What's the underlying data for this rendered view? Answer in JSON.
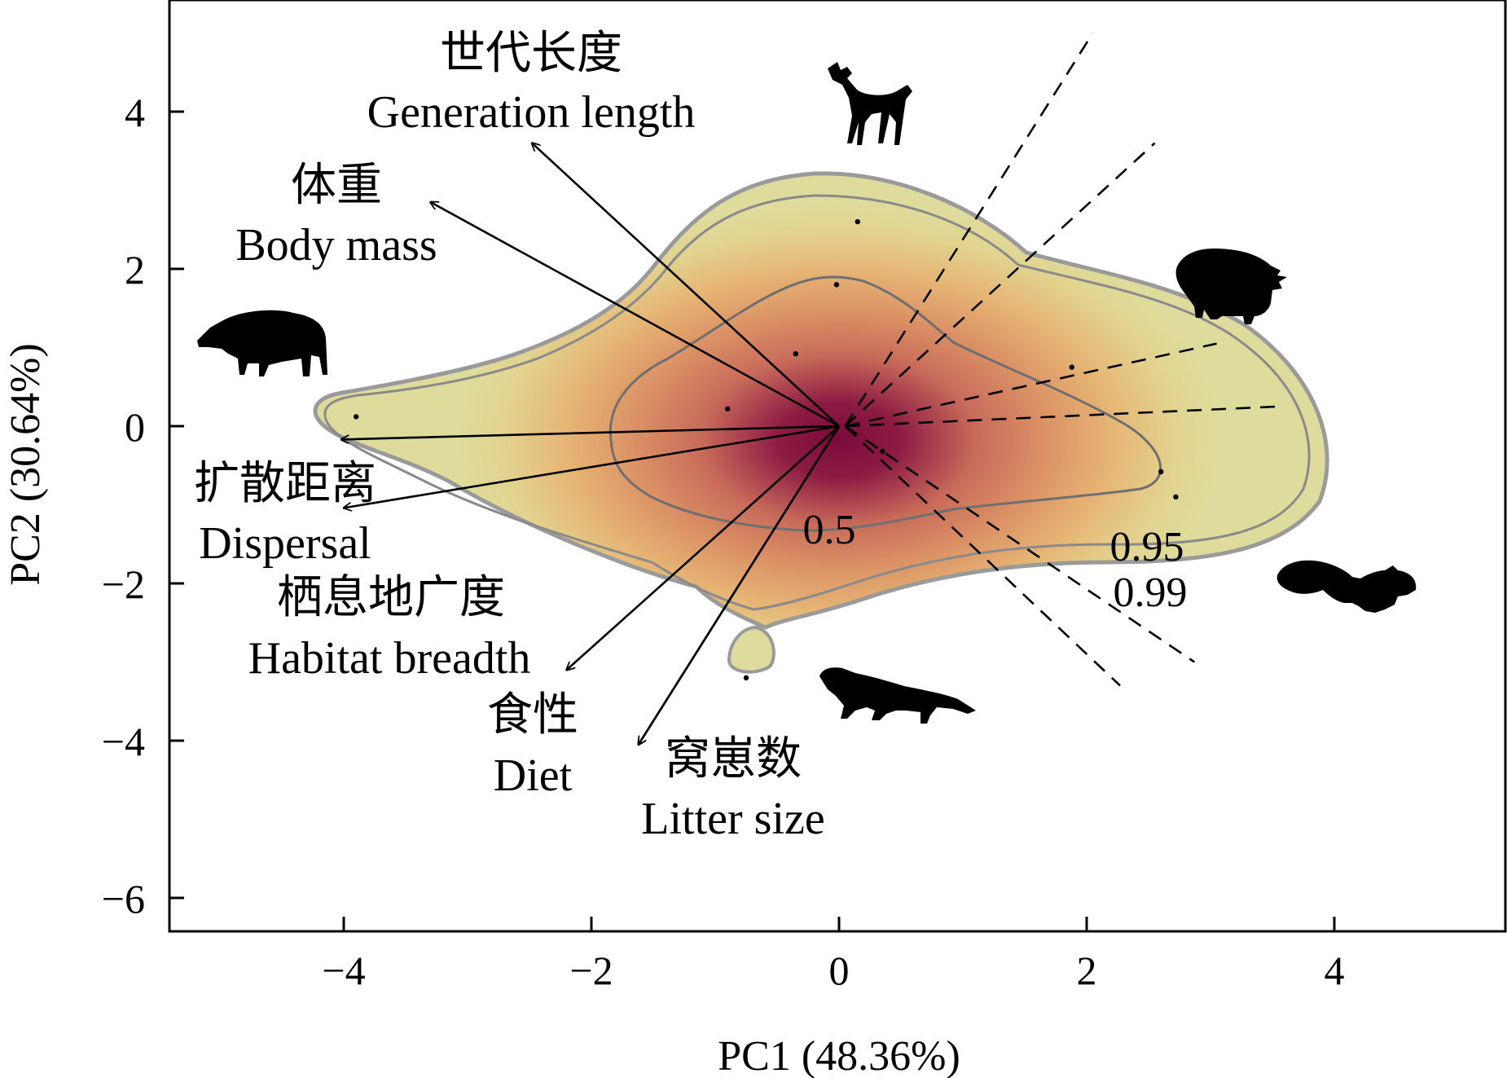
{
  "chart_data": {
    "type": "scatter",
    "subtype": "pca-biplot-with-density",
    "xlabel": "PC1 (48.36%)",
    "ylabel": "PC2 (30.64%)",
    "xlim": [
      -5.4,
      5.4
    ],
    "ylim": [
      -6.4,
      5.4
    ],
    "xticks": [
      -4,
      -2,
      0,
      2,
      4
    ],
    "yticks": [
      -6,
      -4,
      -2,
      0,
      2,
      4
    ],
    "xtick_labels": [
      "−4",
      "−2",
      "0",
      "2",
      "4"
    ],
    "ytick_labels": [
      "−6",
      "−4",
      "−2",
      "0",
      "2",
      "4"
    ],
    "grid": false,
    "colors": {
      "density_high": "#7a0a3a",
      "density_mid": "#d98a62",
      "density_low": "#dedc9c",
      "contour": "#6f6f6f",
      "outer_contour": "#9a9a9a",
      "arrow": "#000000"
    },
    "loadings": [
      {
        "name_cn": "世代长度",
        "name_en": "Generation length",
        "x": -2.48,
        "y": 3.6
      },
      {
        "name_cn": "体重",
        "name_en": "Body mass",
        "x": -3.3,
        "y": 2.85
      },
      {
        "name_cn": "扩散距离",
        "name_en": "Dispersal",
        "x": -4.02,
        "y": -0.17
      },
      {
        "name_cn": "",
        "name_en": "",
        "x": -4.0,
        "y": -1.04
      },
      {
        "name_cn": "栖息地广度",
        "name_en": "Habitat breadth",
        "x": -2.2,
        "y": -3.1
      },
      {
        "name_cn": "食性",
        "name_en": "Diet",
        "x": -1.62,
        "y": -4.05
      },
      {
        "name_cn": "窝崽数",
        "name_en": "Litter size",
        "x": -1.62,
        "y": -4.05
      }
    ],
    "points": [
      {
        "x": 0.15,
        "y": 2.6
      },
      {
        "x": -0.02,
        "y": 1.8
      },
      {
        "x": -0.35,
        "y": 0.92
      },
      {
        "x": -0.9,
        "y": 0.22
      },
      {
        "x": -3.9,
        "y": 0.12
      },
      {
        "x": 1.88,
        "y": 0.75
      },
      {
        "x": 2.6,
        "y": -0.58
      },
      {
        "x": 2.72,
        "y": -0.9
      },
      {
        "x": 0.35,
        "y": -0.32
      },
      {
        "x": -0.75,
        "y": -3.2
      }
    ],
    "contour_levels": [
      "0.5",
      "0.95",
      "0.99"
    ],
    "silhouettes": [
      "deer-icon",
      "wild-boar-icon",
      "porcupine-icon",
      "squirrel-icon",
      "marten-icon"
    ]
  }
}
